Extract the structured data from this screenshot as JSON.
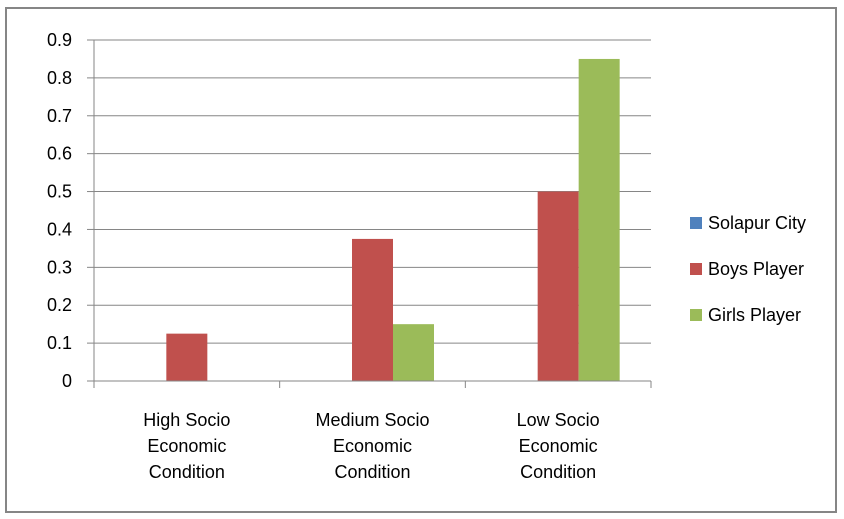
{
  "chart_data": {
    "type": "bar",
    "categories": [
      [
        "High Socio",
        "Economic",
        "Condition"
      ],
      [
        "Medium Socio",
        "Economic",
        "Condition"
      ],
      [
        "Low Socio",
        "Economic",
        "Condition"
      ]
    ],
    "series": [
      {
        "name": "Solapur City",
        "color": "#4f81bd",
        "values": [
          0,
          0,
          0
        ]
      },
      {
        "name": "Boys Player",
        "color": "#c0504d",
        "values": [
          0.125,
          0.375,
          0.5
        ]
      },
      {
        "name": "Girls Player",
        "color": "#9bbb59",
        "values": [
          0,
          0.15,
          0.85
        ]
      }
    ],
    "ylim": [
      0,
      0.9
    ],
    "yticks": [
      "0",
      "0.1",
      "0.2",
      "0.3",
      "0.4",
      "0.5",
      "0.6",
      "0.7",
      "0.8",
      "0.9"
    ],
    "grid": true,
    "legend": "right"
  }
}
